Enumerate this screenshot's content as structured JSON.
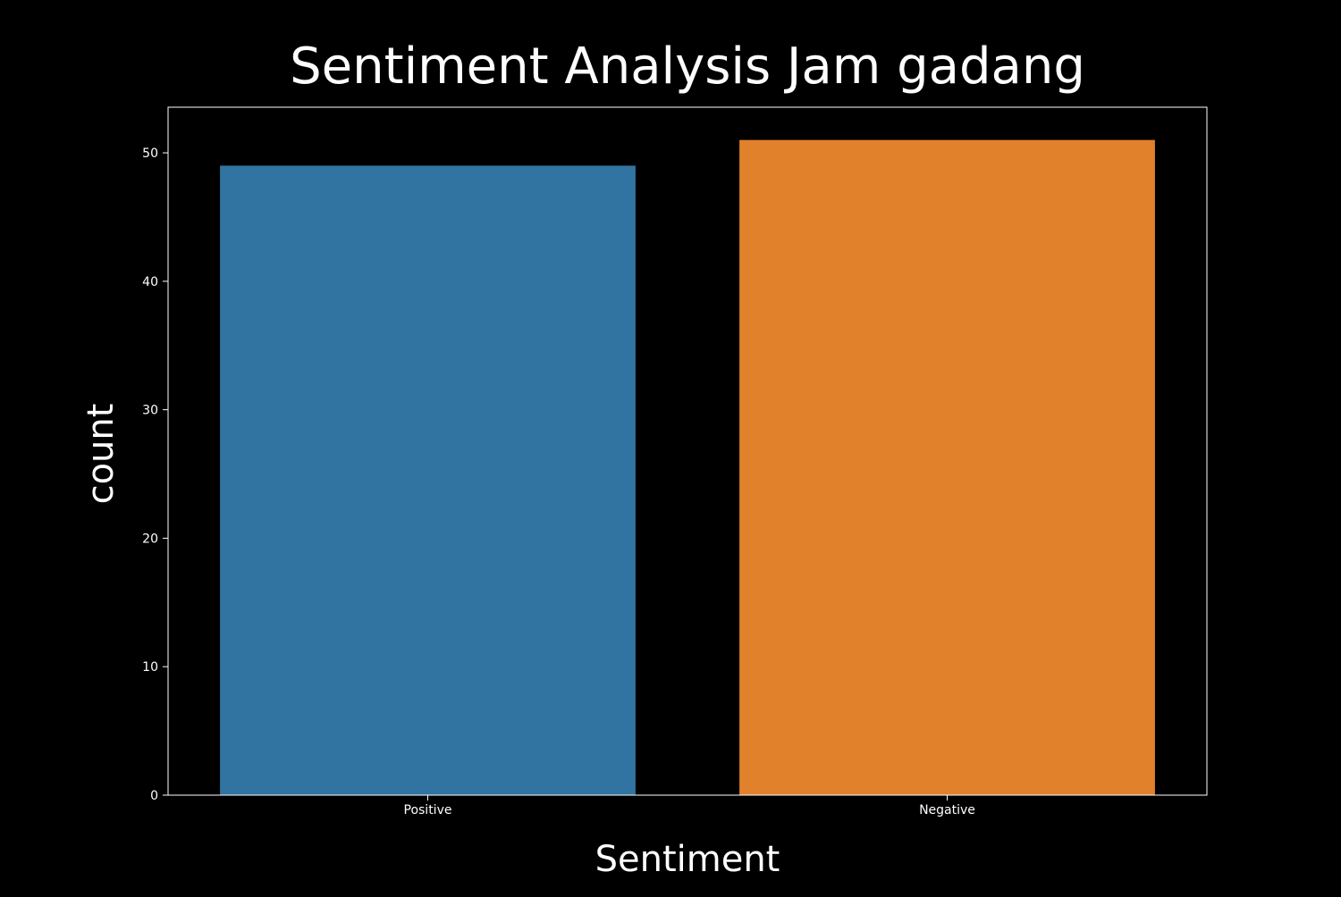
{
  "chart_data": {
    "type": "bar",
    "title": "Sentiment Analysis Jam gadang",
    "xlabel": "Sentiment",
    "ylabel": "count",
    "categories": [
      "Positive",
      "Negative"
    ],
    "values": [
      49,
      51
    ],
    "colors": [
      "#3274a1",
      "#e1812c"
    ],
    "ylim": [
      0,
      53.55
    ],
    "yticks": [
      0,
      10,
      20,
      30,
      40,
      50
    ],
    "ytick_labels": [
      "0",
      "10",
      "20",
      "30",
      "40",
      "50"
    ],
    "grid": false,
    "legend": "none",
    "background": "#000000",
    "foreground": "#ffffff"
  }
}
